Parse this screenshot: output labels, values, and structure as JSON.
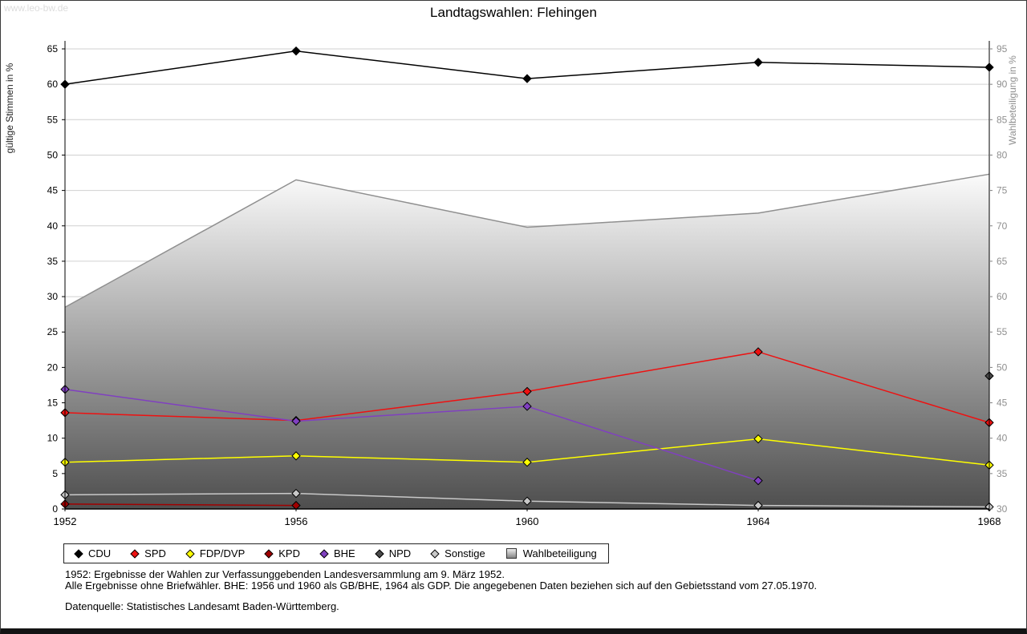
{
  "watermark": "www.leo-bw.de",
  "title": "Landtagswahlen: Flehingen",
  "chart_data": {
    "type": "line",
    "x": [
      1952,
      1956,
      1960,
      1964,
      1968
    ],
    "left_axis": {
      "label": "gültige Stimmen in %",
      "min": 0,
      "max": 65,
      "tick_step": 5
    },
    "right_axis": {
      "label": "Wahlbeteiligung in %",
      "min": 30,
      "max": 95,
      "tick_step": 5
    },
    "grid": true,
    "legend_position": "bottom",
    "marker": "diamond",
    "series": [
      {
        "name": "CDU",
        "axis": "left",
        "color": "#000000",
        "values": [
          60.0,
          64.7,
          60.8,
          63.1,
          62.4
        ]
      },
      {
        "name": "SPD",
        "axis": "left",
        "color": "#ee1111",
        "values": [
          13.6,
          12.5,
          16.6,
          22.2,
          12.2
        ]
      },
      {
        "name": "FDP/DVP",
        "axis": "left",
        "color": "#ffff00",
        "values": [
          6.6,
          7.5,
          6.6,
          9.9,
          6.2
        ]
      },
      {
        "name": "KPD",
        "axis": "left",
        "color": "#a00000",
        "values": [
          0.7,
          0.5,
          null,
          null,
          null
        ]
      },
      {
        "name": "BHE",
        "axis": "left",
        "color": "#8040c0",
        "values": [
          16.9,
          12.4,
          14.5,
          4.0,
          null
        ]
      },
      {
        "name": "NPD",
        "axis": "left",
        "color": "#4a4a4a",
        "values": [
          null,
          null,
          null,
          null,
          18.8
        ]
      },
      {
        "name": "Sonstige",
        "axis": "left",
        "color": "#c8c8c8",
        "values": [
          2.0,
          2.2,
          1.1,
          0.5,
          0.3
        ]
      }
    ],
    "area_series": {
      "name": "Wahlbeteiligung",
      "axis": "right",
      "values": [
        58.5,
        76.5,
        69.8,
        71.8,
        77.3
      ],
      "fill_top": "#fbfbfb",
      "fill_bottom": "#4e4e4e",
      "stroke": "#8f8f8f"
    },
    "colors": {
      "gridline": "#d0d0d0",
      "right_axis_text": "#8f8f8f",
      "axis_line": "#000000"
    }
  },
  "notes": [
    "1952: Ergebnisse der Wahlen zur Verfassunggebenden Landesversammlung am 9. März 1952.",
    "Alle Ergebnisse ohne Briefwähler. BHE: 1956 und 1960 als GB/BHE, 1964 als GDP. Die angegebenen Daten beziehen sich auf den Gebietsstand vom 27.05.1970.",
    "Datenquelle: Statistisches Landesamt Baden-Württemberg."
  ]
}
